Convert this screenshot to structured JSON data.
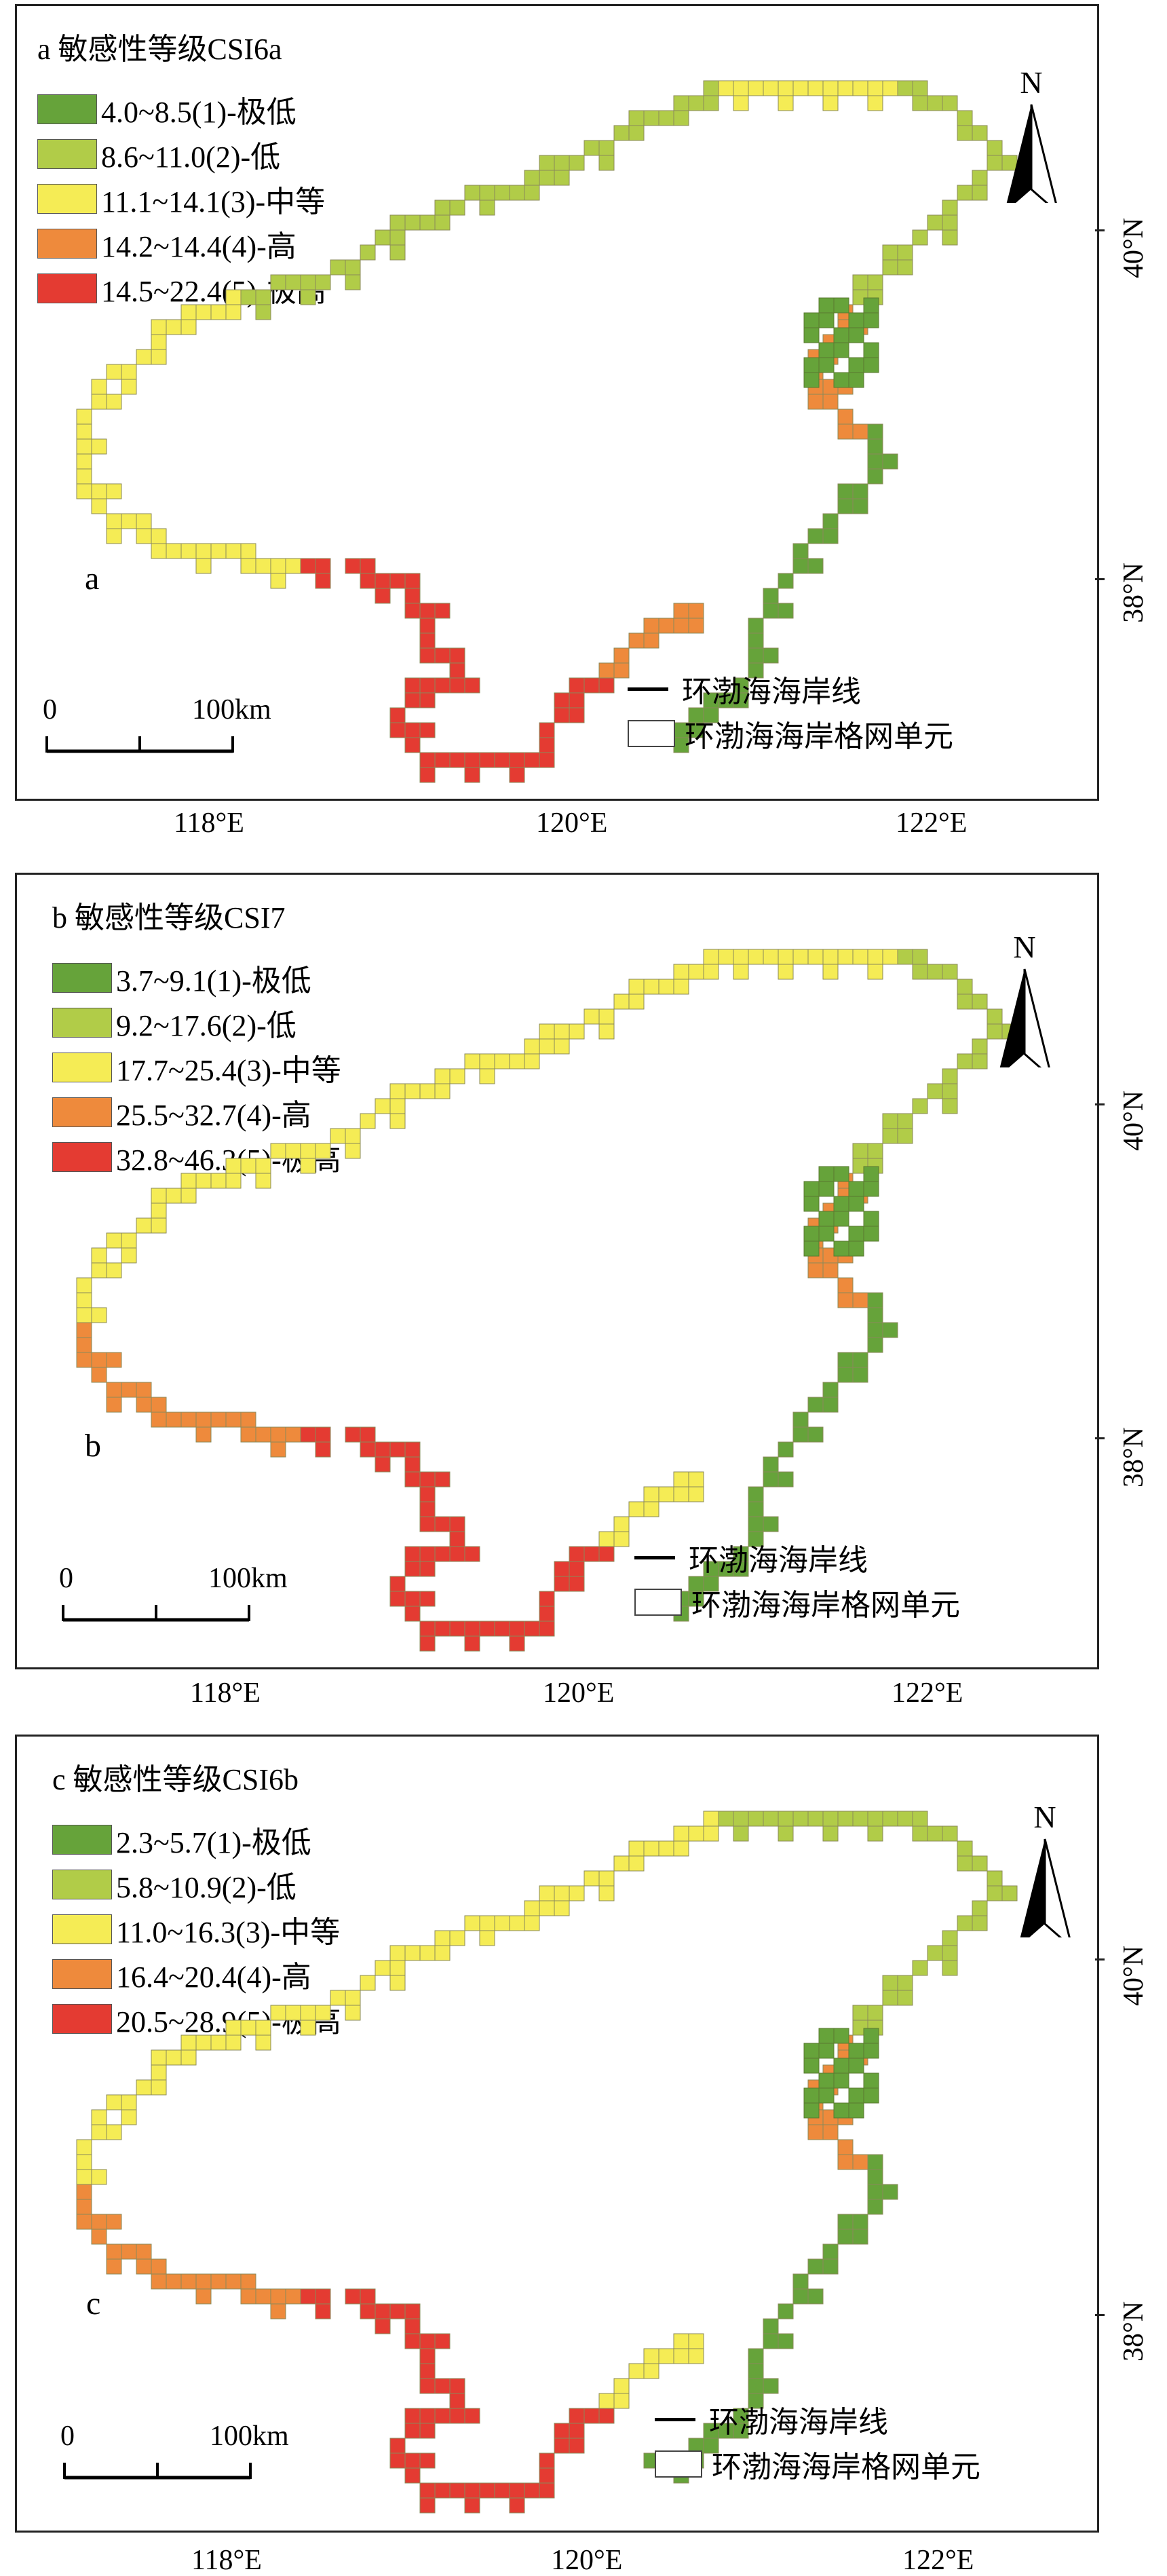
{
  "legend_common": {
    "coastline": "环渤海海岸线",
    "grid_cell": "环渤海海岸格网单元",
    "scale_zero": "0",
    "scale_label": "100km",
    "north": "N"
  },
  "axes": {
    "lat_labels": [
      "40°N",
      "38°N"
    ],
    "lon_labels": [
      "118°E",
      "120°E",
      "122°E"
    ]
  },
  "colors": {
    "class1": "#66a33a",
    "class2": "#b1cc48",
    "class3": "#f5ec55",
    "class4": "#ee8a3c",
    "class5": "#e43b32"
  },
  "panels": [
    {
      "letter": "a",
      "title": "a 敏感性等级CSI6a",
      "legend": [
        {
          "label": "4.0~8.5(1)-极低",
          "color": "#66a33a"
        },
        {
          "label": "8.6~11.0(2)-低",
          "color": "#b1cc48"
        },
        {
          "label": "11.1~14.1(3)-中等",
          "color": "#f5ec55"
        },
        {
          "label": "14.2~14.4(4)-高",
          "color": "#ee8a3c"
        },
        {
          "label": "14.5~22.4(5)-极高",
          "color": "#e43b32"
        }
      ],
      "segments": [
        "class2",
        "class2",
        "class3",
        "class3",
        "class5",
        "class5",
        "class4",
        "class3",
        "class2",
        "class2",
        "class4",
        "class1",
        "class1"
      ]
    },
    {
      "letter": "b",
      "title": "b 敏感性等级CSI7",
      "legend": [
        {
          "label": "3.7~9.1(1)-极低",
          "color": "#66a33a"
        },
        {
          "label": "9.2~17.6(2)-低",
          "color": "#b1cc48"
        },
        {
          "label": "17.7~25.4(3)-中等",
          "color": "#f5ec55"
        },
        {
          "label": "25.5~32.7(4)-高",
          "color": "#ee8a3c"
        },
        {
          "label": "32.8~46.3(5)-极高",
          "color": "#e43b32"
        }
      ],
      "segments": [
        "class3",
        "class3",
        "class3",
        "class4",
        "class5",
        "class5",
        "class3",
        "class3",
        "class2",
        "class2",
        "class4",
        "class1",
        "class1"
      ]
    },
    {
      "letter": "c",
      "title": "c 敏感性等级CSI6b",
      "legend": [
        {
          "label": "2.3~5.7(1)-极低",
          "color": "#66a33a"
        },
        {
          "label": "5.8~10.9(2)-低",
          "color": "#b1cc48"
        },
        {
          "label": "11.0~16.3(3)-中等",
          "color": "#f5ec55"
        },
        {
          "label": "16.4~20.4(4)-高",
          "color": "#ee8a3c"
        },
        {
          "label": "20.5~28.9(5)-极高",
          "color": "#e43b32"
        }
      ],
      "segments": [
        "class3",
        "class3",
        "class3",
        "class4",
        "class5",
        "class5",
        "class3",
        "class2",
        "class2",
        "class2",
        "class4",
        "class1",
        "class1"
      ]
    }
  ]
}
